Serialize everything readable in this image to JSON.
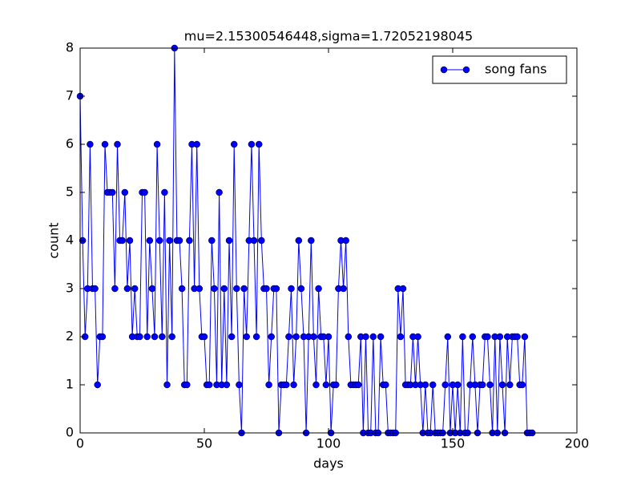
{
  "chart_data": {
    "type": "line",
    "title": "mu=2.15300546448,sigma=1.72052198045",
    "x_label": "days",
    "y_label": "count",
    "x": [
      0,
      1,
      2,
      3,
      4,
      5,
      6,
      7,
      8,
      9,
      10,
      11,
      12,
      13,
      14,
      15,
      16,
      17,
      18,
      19,
      20,
      21,
      22,
      23,
      24,
      25,
      26,
      27,
      28,
      29,
      30,
      31,
      32,
      33,
      34,
      35,
      36,
      37,
      38,
      39,
      40,
      41,
      42,
      43,
      44,
      45,
      46,
      47,
      48,
      49,
      50,
      51,
      52,
      53,
      54,
      55,
      56,
      57,
      58,
      59,
      60,
      61,
      62,
      63,
      64,
      65,
      66,
      67,
      68,
      69,
      70,
      71,
      72,
      73,
      74,
      75,
      76,
      77,
      78,
      79,
      80,
      81,
      82,
      83,
      84,
      85,
      86,
      87,
      88,
      89,
      90,
      91,
      92,
      93,
      94,
      95,
      96,
      97,
      98,
      99,
      100,
      101,
      102,
      103,
      104,
      105,
      106,
      107,
      108,
      109,
      110,
      111,
      112,
      113,
      114,
      115,
      116,
      117,
      118,
      119,
      120,
      121,
      122,
      123,
      124,
      125,
      126,
      127,
      128,
      129,
      130,
      131,
      132,
      133,
      134,
      135,
      136,
      137,
      138,
      139,
      140,
      141,
      142,
      143,
      144,
      145,
      146,
      147,
      148,
      149,
      150,
      151,
      152,
      153,
      154,
      155,
      156,
      157,
      158,
      159,
      160,
      161,
      162,
      163,
      164,
      165,
      166,
      167,
      168,
      169,
      170,
      171,
      172,
      173,
      174,
      175,
      176,
      177,
      178,
      179,
      180,
      181,
      182
    ],
    "series": [
      {
        "name": "song fans",
        "color": "#0000ff",
        "values": [
          7,
          4,
          2,
          3,
          6,
          3,
          3,
          1,
          2,
          2,
          6,
          5,
          5,
          5,
          3,
          6,
          4,
          4,
          5,
          3,
          4,
          2,
          3,
          2,
          2,
          5,
          5,
          2,
          4,
          3,
          2,
          6,
          4,
          2,
          5,
          1,
          4,
          2,
          8,
          4,
          4,
          3,
          1,
          1,
          4,
          6,
          3,
          6,
          3,
          2,
          2,
          1,
          1,
          4,
          3,
          1,
          5,
          1,
          3,
          1,
          4,
          2,
          6,
          3,
          1,
          0,
          3,
          2,
          4,
          6,
          4,
          2,
          6,
          4,
          3,
          3,
          1,
          2,
          3,
          3,
          0,
          1,
          1,
          1,
          2,
          3,
          1,
          2,
          4,
          3,
          2,
          0,
          2,
          4,
          2,
          1,
          3,
          2,
          2,
          1,
          2,
          0,
          1,
          1,
          3,
          4,
          3,
          4,
          2,
          1,
          1,
          1,
          1,
          2,
          0,
          2,
          0,
          0,
          2,
          0,
          0,
          2,
          1,
          1,
          0,
          0,
          0,
          0,
          3,
          2,
          3,
          1,
          1,
          1,
          2,
          1,
          2,
          1,
          0,
          1,
          0,
          0,
          1,
          0,
          0,
          0,
          0,
          1,
          2,
          0,
          1,
          0,
          1,
          0,
          2,
          0,
          0,
          1,
          2,
          1,
          0,
          1,
          1,
          2,
          2,
          1,
          0,
          2,
          0,
          2,
          1,
          0,
          2,
          1,
          2,
          2,
          2,
          1,
          1,
          2,
          0,
          0,
          0
        ]
      }
    ],
    "xlim": [
      0,
      200
    ],
    "xticks": [
      0,
      50,
      100,
      150,
      200
    ],
    "ylim": [
      0,
      8
    ],
    "yticks": [
      0,
      1,
      2,
      3,
      4,
      5,
      6,
      7,
      8
    ],
    "legend": "upper right"
  }
}
